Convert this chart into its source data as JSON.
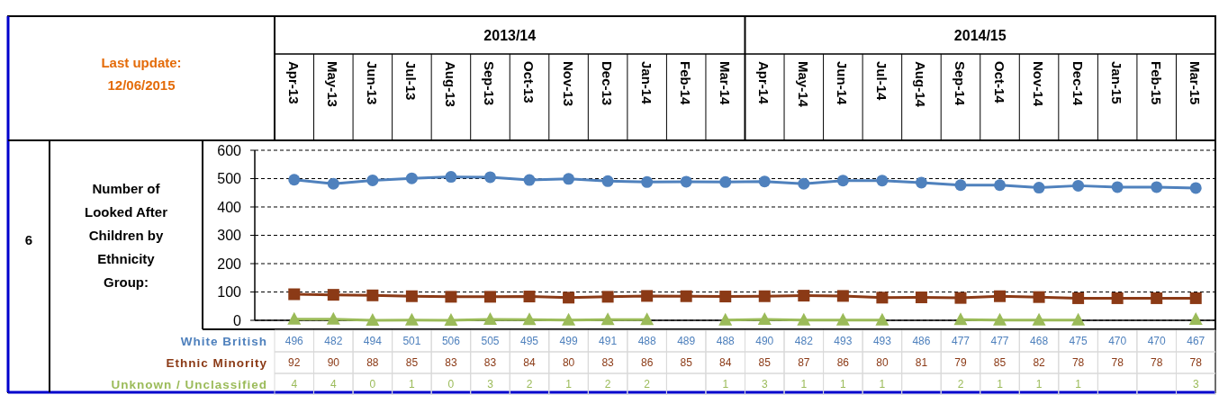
{
  "chart_data": {
    "type": "line",
    "title": "Number of Looked After Children by Ethnicity Group:",
    "subtitle": "Last update: 12/06/2015",
    "annotations": [
      "6",
      "2013/14",
      "2014/15"
    ],
    "categories": [
      "Apr-13",
      "May-13",
      "Jun-13",
      "Jul-13",
      "Aug-13",
      "Sep-13",
      "Oct-13",
      "Nov-13",
      "Dec-13",
      "Jan-14",
      "Feb-14",
      "Mar-14",
      "Apr-14",
      "May-14",
      "Jun-14",
      "Jul-14",
      "Aug-14",
      "Sep-14",
      "Oct-14",
      "Nov-14",
      "Dec-14",
      "Jan-15",
      "Feb-15",
      "Mar-15"
    ],
    "series": [
      {
        "name": "White British",
        "color": "#4f81bd",
        "marker": "circle",
        "values": [
          496,
          482,
          494,
          501,
          506,
          505,
          495,
          499,
          491,
          488,
          489,
          488,
          490,
          482,
          493,
          493,
          486,
          477,
          477,
          468,
          475,
          470,
          470,
          467
        ]
      },
      {
        "name": "Ethnic Minority",
        "color": "#8b3a16",
        "marker": "square",
        "values": [
          92,
          90,
          88,
          85,
          83,
          83,
          84,
          80,
          83,
          86,
          85,
          84,
          85,
          87,
          86,
          80,
          81,
          79,
          85,
          82,
          78,
          78,
          78,
          78
        ]
      },
      {
        "name": "Unknown / Unclassified",
        "color": "#9bbb59",
        "marker": "triangle",
        "values": [
          4,
          4,
          0,
          1,
          0,
          3,
          2,
          1,
          2,
          2,
          null,
          1,
          3,
          1,
          1,
          1,
          null,
          2,
          1,
          1,
          1,
          null,
          null,
          3
        ]
      }
    ],
    "ylim": [
      0,
      600
    ],
    "yticks": [
      0,
      100,
      200,
      300,
      400,
      500,
      600
    ],
    "grid": "y",
    "line_style": "solid",
    "data_labels": true
  }
}
